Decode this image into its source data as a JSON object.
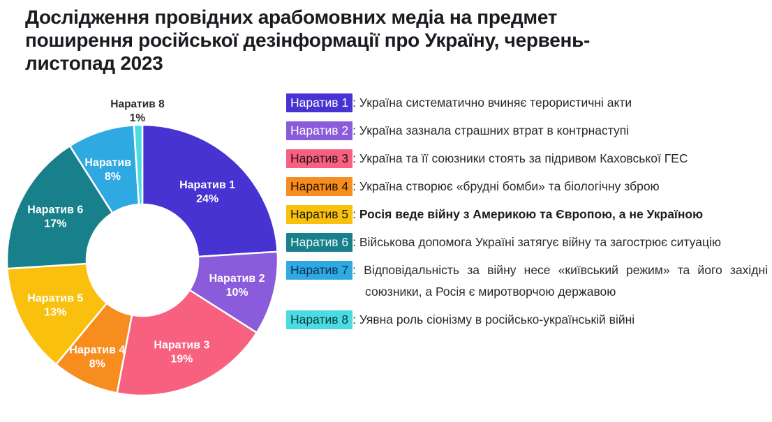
{
  "title": "Дослідження провідних арабомовних медіа на предмет\nпоширення російської дезінформації про Україну, червень-\nлистопад 2023",
  "chart_data": {
    "type": "pie",
    "subtype": "donut",
    "direction": "clockwise",
    "start_angle_deg": 0,
    "hole_radius_ratio": 0.41,
    "categories": [
      "Наратив 1",
      "Наратив 2",
      "Наратив 3",
      "Наратив 4",
      "Наратив 5",
      "Наратив 6",
      "Наратив 7",
      "Наратив 8"
    ],
    "values": [
      24,
      10,
      19,
      8,
      13,
      17,
      8,
      1
    ],
    "value_suffix": "%",
    "colors": [
      "#4733D1",
      "#8A5BDB",
      "#F8607F",
      "#F68D1E",
      "#F9C10D",
      "#17808A",
      "#2FA9E1",
      "#4BDCE2"
    ],
    "slice_label_format": "{name} {value}%",
    "legend_position": "right"
  },
  "legend": {
    "colon": ":",
    "items": [
      {
        "label": "Наратив 1",
        "color": "#4733D1",
        "label_text_color": "#ffffff",
        "text": "Україна систематично вчиняє терористичні акти",
        "bold": false
      },
      {
        "label": "Наратив 2",
        "color": "#8A5BDB",
        "label_text_color": "#ffffff",
        "text": "Україна зазнала страшних втрат в контрнаступі",
        "bold": false
      },
      {
        "label": "Наратив 3",
        "color": "#F8607F",
        "label_text_color": "#23101a",
        "text": "Україна та її союзники стоять за підривом Каховської ГЕС",
        "bold": false
      },
      {
        "label": "Наратив 4",
        "color": "#F68D1E",
        "label_text_color": "#251200",
        "text": "Україна створює «брудні бомби» та біологічну зброю",
        "bold": false
      },
      {
        "label": "Наратив 5",
        "color": "#F9C10D",
        "label_text_color": "#201a04",
        "text": "Росія веде війну з Америкою та Європою, а не Україною",
        "bold": true
      },
      {
        "label": "Наратив 6",
        "color": "#17808A",
        "label_text_color": "#eef8f8",
        "text": "Військова допомога Україні затягує війну та загострює ситуацію",
        "bold": false
      },
      {
        "label": "Наратив 7",
        "color": "#2FA9E1",
        "label_text_color": "#0d3050",
        "text": "Відповідальність за війну несе «київський режим» та його західні союзники, а Росія є миротворчою державою",
        "bold": false
      },
      {
        "label": "Наратив 8",
        "color": "#4BDCE2",
        "label_text_color": "#083c40",
        "text": "Уявна роль сіонізму в російсько-українській війні",
        "bold": false
      }
    ]
  }
}
